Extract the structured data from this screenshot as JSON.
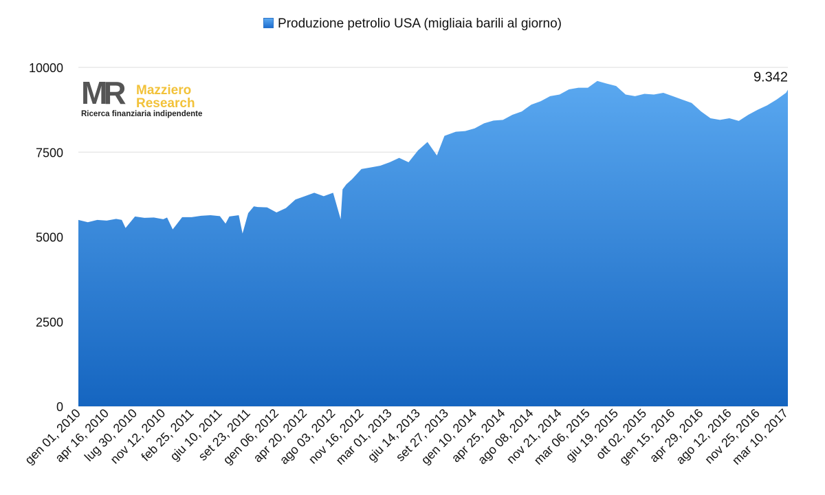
{
  "legend": {
    "series_label": "Produzione petrolio USA (migliaia barili al giorno)"
  },
  "logo": {
    "mark": "MR",
    "name_line1": "Mazziero",
    "name_line2": "Research",
    "tagline": "Ricerca finanziaria indipendente"
  },
  "colors": {
    "area_top": "#5aa8f0",
    "area_bottom": "#1565c0",
    "grid": "#dddddd",
    "text": "#111111"
  },
  "chart_data": {
    "type": "area",
    "title": "",
    "xlabel": "",
    "ylabel": "",
    "ylim": [
      0,
      10000
    ],
    "y_ticks": [
      0,
      2500,
      5000,
      7500,
      10000
    ],
    "y_tick_labels": [
      "0",
      "2500",
      "5000",
      "7500",
      "10000"
    ],
    "x_ticks": [
      "gen 01, 2010",
      "apr 16, 2010",
      "lug 30, 2010",
      "nov 12, 2010",
      "feb 25, 2011",
      "giu 10, 2011",
      "set 23, 2011",
      "gen 06, 2012",
      "apr 20, 2012",
      "ago 03, 2012",
      "nov 16, 2012",
      "mar 01, 2013",
      "giu 14, 2013",
      "set 27, 2013",
      "gen 10, 2014",
      "apr 25, 2014",
      "ago 08, 2014",
      "nov 21, 2014",
      "mar 06, 2015",
      "giu 19, 2015",
      "ott 02, 2015",
      "gen 15, 2016",
      "apr 29, 2016",
      "ago 12, 2016",
      "nov 25, 2016",
      "mar 10, 2017"
    ],
    "x": [
      "2010-01-01",
      "2010-02-05",
      "2010-03-12",
      "2010-04-16",
      "2010-05-21",
      "2010-06-11",
      "2010-06-25",
      "2010-07-30",
      "2010-09-03",
      "2010-10-08",
      "2010-11-12",
      "2010-11-26",
      "2010-12-17",
      "2011-01-21",
      "2011-02-25",
      "2011-04-01",
      "2011-05-06",
      "2011-06-10",
      "2011-07-01",
      "2011-07-15",
      "2011-08-19",
      "2011-09-02",
      "2011-09-23",
      "2011-10-14",
      "2011-10-28",
      "2011-12-02",
      "2012-01-06",
      "2012-02-10",
      "2012-03-16",
      "2012-04-20",
      "2012-05-25",
      "2012-06-29",
      "2012-08-03",
      "2012-08-31",
      "2012-09-07",
      "2012-09-21",
      "2012-10-12",
      "2012-11-16",
      "2012-12-21",
      "2013-01-25",
      "2013-03-01",
      "2013-04-05",
      "2013-05-10",
      "2013-06-14",
      "2013-07-19",
      "2013-08-23",
      "2013-09-20",
      "2013-09-27",
      "2013-11-01",
      "2013-12-06",
      "2014-01-10",
      "2014-02-14",
      "2014-03-21",
      "2014-04-25",
      "2014-05-30",
      "2014-07-04",
      "2014-08-08",
      "2014-09-12",
      "2014-10-17",
      "2014-11-21",
      "2014-12-26",
      "2015-01-30",
      "2015-03-06",
      "2015-04-10",
      "2015-05-15",
      "2015-06-19",
      "2015-07-24",
      "2015-08-28",
      "2015-10-02",
      "2015-11-06",
      "2015-12-11",
      "2016-01-15",
      "2016-02-19",
      "2016-03-25",
      "2016-04-29",
      "2016-06-03",
      "2016-07-08",
      "2016-08-12",
      "2016-09-16",
      "2016-10-21",
      "2016-11-25",
      "2016-12-30",
      "2017-02-03",
      "2017-03-10",
      "2017-03-17"
    ],
    "series": [
      {
        "values": [
          5500,
          5430,
          5500,
          5480,
          5530,
          5500,
          5260,
          5600,
          5560,
          5570,
          5520,
          5570,
          5220,
          5580,
          5580,
          5620,
          5640,
          5610,
          5390,
          5600,
          5640,
          5100,
          5700,
          5900,
          5880,
          5870,
          5720,
          5850,
          6100,
          6200,
          6300,
          6200,
          6300,
          5520,
          6400,
          6550,
          6700,
          7000,
          7050,
          7100,
          7200,
          7330,
          7200,
          7550,
          7800,
          7400,
          7980,
          8000,
          8100,
          8120,
          8200,
          8350,
          8430,
          8450,
          8600,
          8700,
          8900,
          9000,
          9150,
          9200,
          9350,
          9400,
          9400,
          9600,
          9520,
          9450,
          9200,
          9150,
          9220,
          9200,
          9250,
          9150,
          9050,
          8950,
          8700,
          8500,
          8450,
          8500,
          8420,
          8600,
          8750,
          8880,
          9050,
          9250,
          9342
        ]
      }
    ],
    "last_value_label": "9.342",
    "legend_position": "top-center",
    "grid": true
  }
}
